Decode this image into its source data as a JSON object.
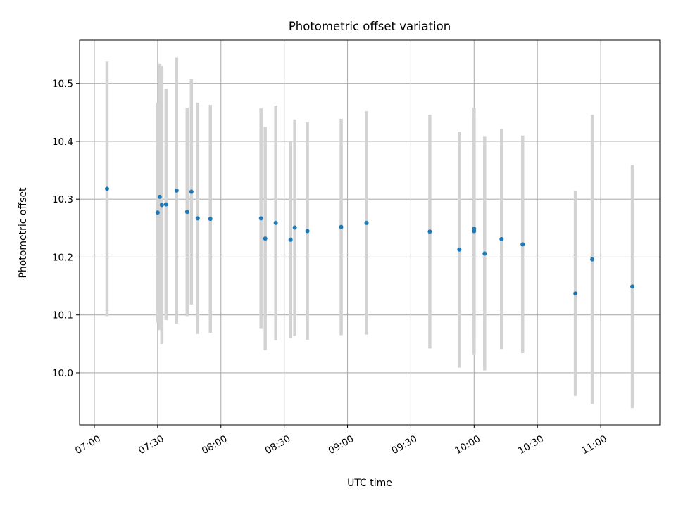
{
  "chart_data": {
    "type": "scatter",
    "title": "Photometric offset variation",
    "xlabel": "UTC time",
    "ylabel": "Photometric offset",
    "x_axis": "time (UTC, HH:MM)",
    "xlim": [
      "06:53",
      "11:28"
    ],
    "ylim": [
      9.91,
      10.575
    ],
    "x_ticks": [
      "07:00",
      "07:30",
      "08:00",
      "08:30",
      "09:00",
      "09:30",
      "10:00",
      "10:30",
      "11:00"
    ],
    "y_ticks": [
      "10.0",
      "10.1",
      "10.2",
      "10.3",
      "10.4",
      "10.5"
    ],
    "grid": true,
    "legend": "none",
    "colors": {
      "marker": "#1f77b4",
      "errorbar": "#d3d3d3",
      "grid": "#b0b0b0"
    },
    "series": [
      {
        "marker": "dot",
        "error_bars": "vertical",
        "points": [
          {
            "x": "07:06",
            "y": 10.318,
            "err": 0.22
          },
          {
            "x": "07:30",
            "y": 10.277,
            "err": 0.19
          },
          {
            "x": "07:31",
            "y": 10.304,
            "err": 0.23
          },
          {
            "x": "07:32",
            "y": 10.29,
            "err": 0.24
          },
          {
            "x": "07:34",
            "y": 10.291,
            "err": 0.2
          },
          {
            "x": "07:39",
            "y": 10.315,
            "err": 0.23
          },
          {
            "x": "07:44",
            "y": 10.278,
            "err": 0.18
          },
          {
            "x": "07:46",
            "y": 10.313,
            "err": 0.195
          },
          {
            "x": "07:49",
            "y": 10.267,
            "err": 0.2
          },
          {
            "x": "07:55",
            "y": 10.266,
            "err": 0.197
          },
          {
            "x": "08:19",
            "y": 10.267,
            "err": 0.19
          },
          {
            "x": "08:21",
            "y": 10.232,
            "err": 0.193
          },
          {
            "x": "08:26",
            "y": 10.259,
            "err": 0.203
          },
          {
            "x": "08:33",
            "y": 10.23,
            "err": 0.17
          },
          {
            "x": "08:35",
            "y": 10.251,
            "err": 0.187
          },
          {
            "x": "08:41",
            "y": 10.245,
            "err": 0.188
          },
          {
            "x": "08:57",
            "y": 10.252,
            "err": 0.187
          },
          {
            "x": "09:09",
            "y": 10.259,
            "err": 0.193
          },
          {
            "x": "09:39",
            "y": 10.244,
            "err": 0.202
          },
          {
            "x": "09:53",
            "y": 10.213,
            "err": 0.204
          },
          {
            "x": "10:00",
            "y": 10.245,
            "err": 0.213
          },
          {
            "x": "10:00",
            "y": 10.249,
            "err": 0.19
          },
          {
            "x": "10:05",
            "y": 10.206,
            "err": 0.202
          },
          {
            "x": "10:13",
            "y": 10.231,
            "err": 0.19
          },
          {
            "x": "10:23",
            "y": 10.222,
            "err": 0.188
          },
          {
            "x": "10:48",
            "y": 10.137,
            "err": 0.177
          },
          {
            "x": "10:56",
            "y": 10.196,
            "err": 0.25
          },
          {
            "x": "11:15",
            "y": 10.149,
            "err": 0.21
          }
        ]
      }
    ]
  }
}
